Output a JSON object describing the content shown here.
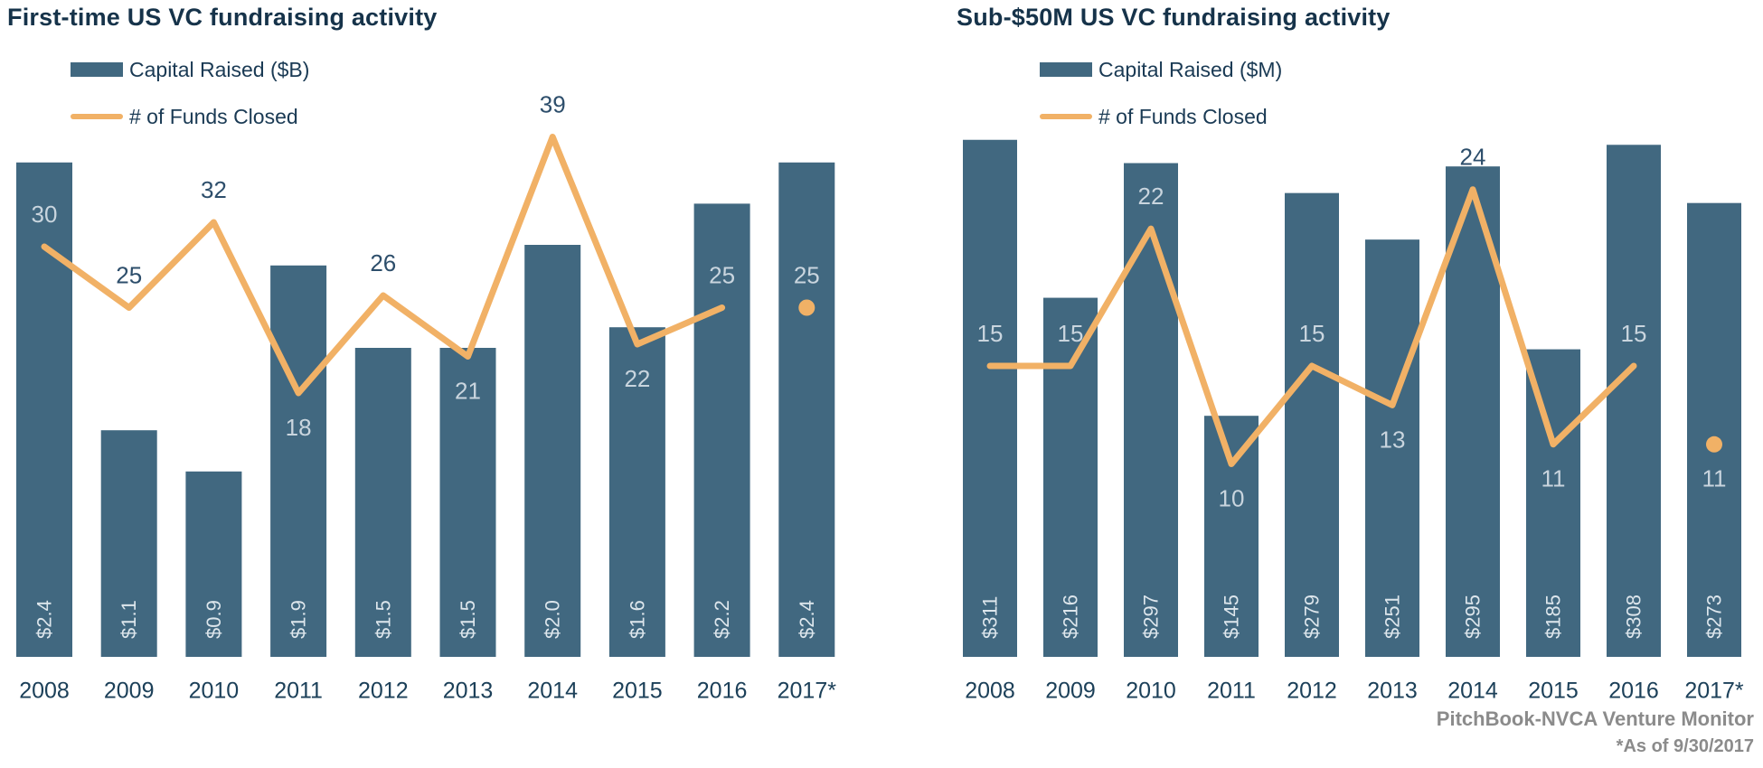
{
  "footer": {
    "source": "PitchBook-NVCA Venture Monitor",
    "note": "*As of 9/30/2017"
  },
  "colors": {
    "bar": "#416880",
    "line": "#f1b166",
    "title_text": "#16334a",
    "legend_text": "#1a3a54",
    "axis_text": "#1c4059",
    "point_label_dark": "#2d4e6b",
    "point_label_light": "#c9d5de",
    "bar_label": "#dde6ec",
    "footer_text": "#8b8b8b"
  },
  "chart_data": [
    {
      "type": "bar",
      "subtype": "bar-line-combo",
      "title": "First-time US VC fundraising activity",
      "categories": [
        "2008",
        "2009",
        "2010",
        "2011",
        "2012",
        "2013",
        "2014",
        "2015",
        "2016",
        "2017*"
      ],
      "grid": false,
      "legend_position": "top-left",
      "series": [
        {
          "name": "Capital Raised ($B)",
          "type": "bar",
          "values": [
            2.4,
            1.1,
            0.9,
            1.9,
            1.5,
            1.5,
            2.0,
            1.6,
            2.2,
            2.4
          ],
          "value_labels": [
            "$2.4",
            "$1.1",
            "$0.9",
            "$1.9",
            "$1.5",
            "$1.5",
            "$2.0",
            "$1.6",
            "$2.2",
            "$2.4"
          ]
        },
        {
          "name": "# of Funds Closed",
          "type": "line",
          "values": [
            30,
            25,
            32,
            18,
            26,
            21,
            39,
            22,
            25,
            25
          ],
          "isolated_last_point": true,
          "label_below": [
            false,
            false,
            false,
            true,
            false,
            true,
            false,
            true,
            false,
            false
          ]
        }
      ]
    },
    {
      "type": "bar",
      "subtype": "bar-line-combo",
      "title": "Sub-$50M US VC fundraising activity",
      "categories": [
        "2008",
        "2009",
        "2010",
        "2011",
        "2012",
        "2013",
        "2014",
        "2015",
        "2016",
        "2017*"
      ],
      "grid": false,
      "legend_position": "top-left",
      "series": [
        {
          "name": "Capital Raised ($M)",
          "type": "bar",
          "values": [
            311,
            216,
            297,
            145,
            279,
            251,
            295,
            185,
            308,
            273
          ],
          "value_labels": [
            "$311",
            "$216",
            "$297",
            "$145",
            "$279",
            "$251",
            "$295",
            "$185",
            "$308",
            "$273"
          ]
        },
        {
          "name": "# of Funds Closed",
          "type": "line",
          "values": [
            15,
            15,
            22,
            10,
            15,
            13,
            24,
            11,
            15,
            11
          ],
          "isolated_last_point": true,
          "label_below": [
            false,
            false,
            false,
            true,
            false,
            true,
            false,
            true,
            false,
            true
          ]
        }
      ]
    }
  ]
}
